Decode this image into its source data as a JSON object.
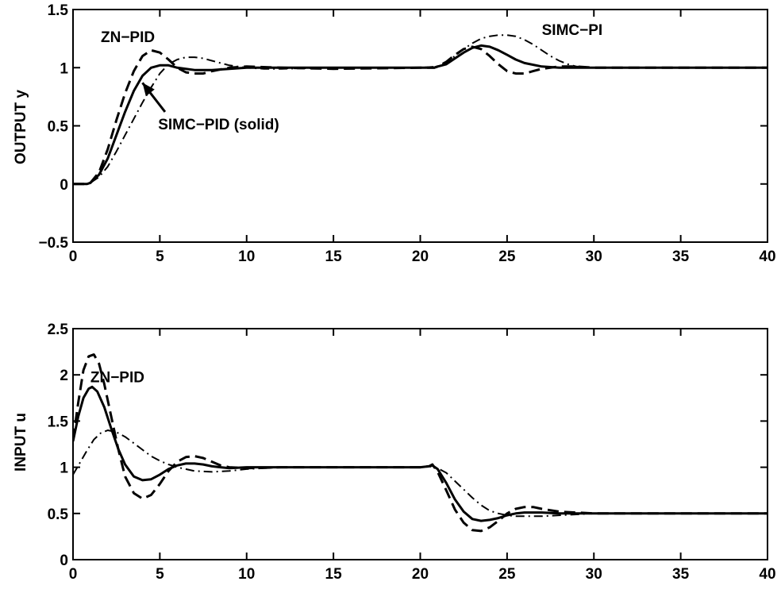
{
  "chart_data": [
    {
      "type": "line",
      "ylabel": "OUTPUT y",
      "xlim": [
        0,
        40
      ],
      "ylim": [
        -0.5,
        1.5
      ],
      "xticks": [
        "0",
        "5",
        "10",
        "15",
        "20",
        "25",
        "30",
        "35",
        "40"
      ],
      "yticks": [
        "-0.5",
        "0",
        "0.5",
        "1",
        "1.5"
      ],
      "grid": false,
      "series": [
        {
          "style": "solid",
          "x": [
            0,
            0.8,
            1,
            1.5,
            2,
            2.5,
            3,
            3.5,
            4,
            4.5,
            5,
            5.5,
            6,
            6.5,
            7,
            8,
            9,
            10,
            12,
            15,
            20,
            20.8,
            21,
            21.5,
            22,
            22.5,
            23,
            23.5,
            24,
            24.5,
            25,
            25.5,
            26,
            27,
            28,
            29,
            30,
            32,
            35,
            40
          ],
          "y": [
            0,
            0,
            0.01,
            0.08,
            0.22,
            0.42,
            0.62,
            0.8,
            0.93,
            1.0,
            1.02,
            1.02,
            1.0,
            0.99,
            0.98,
            0.98,
            0.99,
            1.0,
            1.0,
            1.0,
            1.0,
            1.0,
            1.01,
            1.03,
            1.08,
            1.13,
            1.17,
            1.19,
            1.18,
            1.15,
            1.11,
            1.07,
            1.04,
            1.01,
            1.0,
            1.0,
            1.0,
            1.0,
            1.0,
            1.0
          ]
        },
        {
          "style": "dashed",
          "x": [
            0,
            0.8,
            1,
            1.5,
            2,
            2.5,
            3,
            3.5,
            4,
            4.5,
            5,
            5.5,
            6,
            6.5,
            7,
            7.5,
            8,
            9,
            10,
            12,
            15,
            20,
            20.8,
            21,
            21.5,
            22,
            22.5,
            23,
            23.5,
            24,
            24.5,
            25,
            25.5,
            26,
            26.5,
            27,
            28,
            29,
            30,
            32,
            35,
            40
          ],
          "y": [
            0,
            0,
            0.01,
            0.1,
            0.3,
            0.55,
            0.78,
            0.97,
            1.1,
            1.15,
            1.13,
            1.07,
            1.0,
            0.96,
            0.95,
            0.95,
            0.97,
            1.0,
            1.01,
            1.0,
            0.99,
            1.0,
            1.0,
            1.01,
            1.05,
            1.11,
            1.16,
            1.18,
            1.16,
            1.1,
            1.03,
            0.97,
            0.95,
            0.95,
            0.97,
            0.99,
            1.01,
            1.01,
            1.0,
            1.0,
            1.0,
            1.0
          ]
        },
        {
          "style": "dashdot",
          "x": [
            0,
            0.8,
            1,
            1.5,
            2,
            2.5,
            3,
            3.5,
            4,
            4.5,
            5,
            5.5,
            6,
            6.5,
            7,
            7.5,
            8,
            8.5,
            9,
            10,
            11,
            12,
            15,
            20,
            21,
            21.5,
            22,
            22.5,
            23,
            23.5,
            24,
            24.5,
            25,
            25.5,
            26,
            26.5,
            27,
            27.5,
            28,
            28.5,
            29,
            30,
            31,
            32,
            35,
            40
          ],
          "y": [
            0,
            0,
            0.01,
            0.06,
            0.15,
            0.28,
            0.42,
            0.56,
            0.7,
            0.83,
            0.95,
            1.03,
            1.07,
            1.09,
            1.09,
            1.08,
            1.06,
            1.04,
            1.02,
            1.0,
            0.99,
            0.99,
            1.0,
            1.0,
            1.01,
            1.05,
            1.1,
            1.16,
            1.21,
            1.25,
            1.27,
            1.28,
            1.28,
            1.27,
            1.24,
            1.2,
            1.15,
            1.1,
            1.06,
            1.03,
            1.01,
            1.0,
            1.0,
            1.0,
            1.0,
            1.0
          ]
        }
      ],
      "annotations": [
        {
          "text": "ZN−PID",
          "x": 1.6,
          "y": 1.22
        },
        {
          "text": "SIMC−PI",
          "x": 27.0,
          "y": 1.28
        },
        {
          "text": "SIMC−PID (solid)",
          "x": 4.9,
          "y": 0.47
        }
      ]
    },
    {
      "type": "line",
      "ylabel": "INPUT u",
      "xlim": [
        0,
        40
      ],
      "ylim": [
        0,
        2.5
      ],
      "xticks": [
        "0",
        "5",
        "10",
        "15",
        "20",
        "25",
        "30",
        "35",
        "40"
      ],
      "yticks": [
        "0",
        "0.5",
        "1",
        "1.5",
        "2",
        "2.5"
      ],
      "grid": false,
      "series": [
        {
          "style": "solid",
          "x": [
            0,
            0.3,
            0.6,
            0.9,
            1.1,
            1.4,
            1.8,
            2.2,
            2.6,
            3,
            3.5,
            4,
            4.5,
            5,
            5.5,
            6,
            6.5,
            7,
            7.5,
            8,
            8.5,
            9,
            10,
            12,
            15,
            20,
            20.5,
            20.7,
            21,
            21.5,
            22,
            22.5,
            23,
            23.5,
            24,
            24.5,
            25,
            25.5,
            26,
            27,
            28,
            30,
            35,
            40
          ],
          "y": [
            1.28,
            1.55,
            1.75,
            1.85,
            1.87,
            1.82,
            1.65,
            1.42,
            1.2,
            1.03,
            0.9,
            0.86,
            0.87,
            0.92,
            0.98,
            1.02,
            1.04,
            1.04,
            1.03,
            1.01,
            1.0,
            0.99,
            1.0,
            1.0,
            1.0,
            1.0,
            1.01,
            1.02,
            0.98,
            0.83,
            0.65,
            0.52,
            0.44,
            0.42,
            0.43,
            0.45,
            0.48,
            0.5,
            0.51,
            0.51,
            0.5,
            0.5,
            0.5,
            0.5
          ]
        },
        {
          "style": "dashed",
          "x": [
            0,
            0.3,
            0.6,
            0.9,
            1.2,
            1.5,
            1.8,
            2.2,
            2.6,
            3,
            3.5,
            4,
            4.5,
            5,
            5.5,
            6,
            6.5,
            7,
            7.5,
            8,
            8.5,
            9,
            10,
            12,
            15,
            20,
            20.5,
            20.7,
            21,
            21.5,
            22,
            22.5,
            23,
            23.5,
            24,
            24.5,
            25,
            25.5,
            26,
            26.5,
            27,
            28,
            30,
            35,
            40
          ],
          "y": [
            1.3,
            1.7,
            2.05,
            2.2,
            2.22,
            2.12,
            1.9,
            1.55,
            1.2,
            0.9,
            0.72,
            0.66,
            0.7,
            0.82,
            0.96,
            1.06,
            1.11,
            1.12,
            1.1,
            1.06,
            1.02,
            1.0,
            0.99,
            1.0,
            1.0,
            1.0,
            1.01,
            1.03,
            0.95,
            0.75,
            0.54,
            0.4,
            0.32,
            0.31,
            0.35,
            0.42,
            0.5,
            0.55,
            0.57,
            0.57,
            0.55,
            0.52,
            0.5,
            0.5,
            0.5
          ]
        },
        {
          "style": "dashdot",
          "x": [
            0,
            0.4,
            0.8,
            1.2,
            1.6,
            2,
            2.5,
            3,
            3.5,
            4,
            4.5,
            5,
            5.5,
            6,
            7,
            8,
            9,
            10,
            11,
            12,
            15,
            20,
            20.5,
            21,
            21.5,
            22,
            22.5,
            23,
            23.5,
            24,
            24.5,
            25,
            25.5,
            26,
            27,
            28,
            29,
            30,
            32,
            35,
            40
          ],
          "y": [
            0.92,
            1.05,
            1.18,
            1.3,
            1.37,
            1.4,
            1.38,
            1.33,
            1.26,
            1.19,
            1.12,
            1.07,
            1.03,
            1.0,
            0.96,
            0.95,
            0.96,
            0.98,
            0.99,
            1.0,
            1.0,
            1.0,
            1.01,
            0.99,
            0.94,
            0.85,
            0.76,
            0.67,
            0.59,
            0.53,
            0.5,
            0.48,
            0.47,
            0.47,
            0.47,
            0.48,
            0.49,
            0.5,
            0.5,
            0.5,
            0.5
          ]
        }
      ],
      "annotations": [
        {
          "text": "ZN−PID",
          "x": 1.0,
          "y": 1.92
        }
      ]
    }
  ]
}
